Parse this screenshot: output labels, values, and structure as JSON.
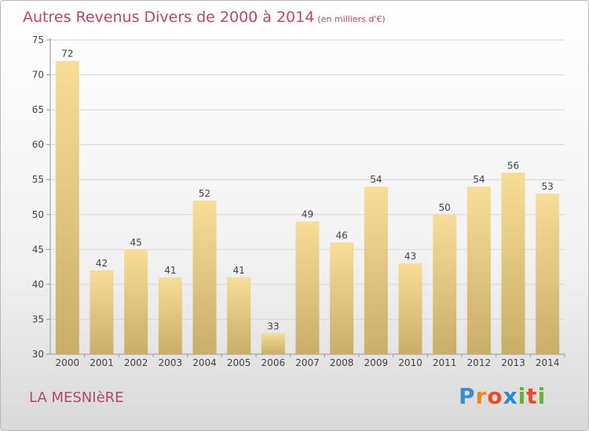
{
  "header": {
    "title": "Autres Revenus Divers de 2000 à 2014",
    "subtitle": "(en milliers d'€)"
  },
  "footer": {
    "commune": "LA MESNIèRE",
    "logo_text": "Proxiti"
  },
  "colors": {
    "title": "#b04a6a",
    "bar_light": "#f7dd98",
    "bar_dark": "#c9ae69",
    "logo": [
      "#3b8fd0",
      "#e8891e",
      "#e84a2a",
      "#2a8ad0",
      "#62b534",
      "#e84a2a",
      "#62b534"
    ]
  },
  "chart_data": {
    "type": "bar",
    "categories": [
      "2000",
      "2001",
      "2002",
      "2003",
      "2004",
      "2005",
      "2006",
      "2007",
      "2008",
      "2009",
      "2010",
      "2011",
      "2012",
      "2013",
      "2014"
    ],
    "values": [
      72,
      42,
      45,
      41,
      52,
      41,
      33,
      49,
      46,
      54,
      43,
      50,
      54,
      56,
      53
    ],
    "ylim": [
      30,
      75
    ],
    "yticks": [
      30,
      35,
      40,
      45,
      50,
      55,
      60,
      65,
      70,
      75
    ],
    "grid": true
  }
}
